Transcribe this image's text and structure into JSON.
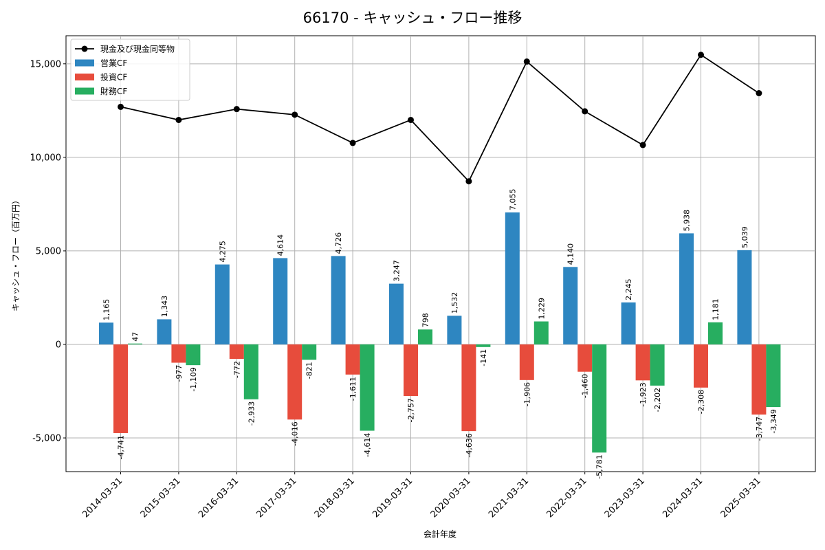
{
  "chart_data": {
    "type": "bar",
    "title": "66170 - キャッシュ・フロー推移",
    "xlabel": "会計年度",
    "ylabel": "キャッシュ・フロー（百万円）",
    "ylim": [
      -6800,
      16500
    ],
    "yticks": [
      -5000,
      0,
      5000,
      10000,
      15000
    ],
    "ytick_labels": [
      "-5,000",
      "0",
      "5,000",
      "10,000",
      "15,000"
    ],
    "grid": true,
    "legend_position": "top-left",
    "categories": [
      "2014-03-31",
      "2015-03-31",
      "2016-03-31",
      "2017-03-31",
      "2018-03-31",
      "2019-03-31",
      "2020-03-31",
      "2021-03-31",
      "2022-03-31",
      "2023-03-31",
      "2024-03-31",
      "2025-03-31"
    ],
    "series": [
      {
        "name": "営業CF",
        "kind": "bar",
        "color": "#2e86c1",
        "values": [
          1165,
          1343,
          4275,
          4614,
          4726,
          3247,
          1532,
          7055,
          4140,
          2245,
          5938,
          5039
        ],
        "labels": [
          "1,165",
          "1,343",
          "4,275",
          "4,614",
          "4,726",
          "3,247",
          "1,532",
          "7,055",
          "4,140",
          "2,245",
          "5,938",
          "5,039"
        ]
      },
      {
        "name": "投資CF",
        "kind": "bar",
        "color": "#e74c3c",
        "values": [
          -4741,
          -977,
          -772,
          -4016,
          -1611,
          -2757,
          -4636,
          -1906,
          -1460,
          -1923,
          -2308,
          -3747
        ],
        "labels": [
          "-4,741",
          "-977",
          "-772",
          "-4,016",
          "-1,611",
          "-2,757",
          "-4,636",
          "-1,906",
          "-1,460",
          "-1,923",
          "-2,308",
          "-3,747"
        ]
      },
      {
        "name": "財務CF",
        "kind": "bar",
        "color": "#27ae60",
        "values": [
          47,
          -1109,
          -2933,
          -821,
          -4614,
          798,
          -141,
          1229,
          -5781,
          -2202,
          1181,
          -3349
        ],
        "labels": [
          "47",
          "-1,109",
          "-2,933",
          "-821",
          "-4,614",
          "798",
          "-141",
          "1,229",
          "-5,781",
          "-2,202",
          "1,181",
          "-3,349"
        ]
      },
      {
        "name": "現金及び現金同等物",
        "kind": "line",
        "color": "#000000",
        "values": [
          12700,
          12000,
          12580,
          12280,
          10770,
          12000,
          8720,
          15120,
          12460,
          10660,
          15480,
          13430
        ]
      }
    ]
  }
}
